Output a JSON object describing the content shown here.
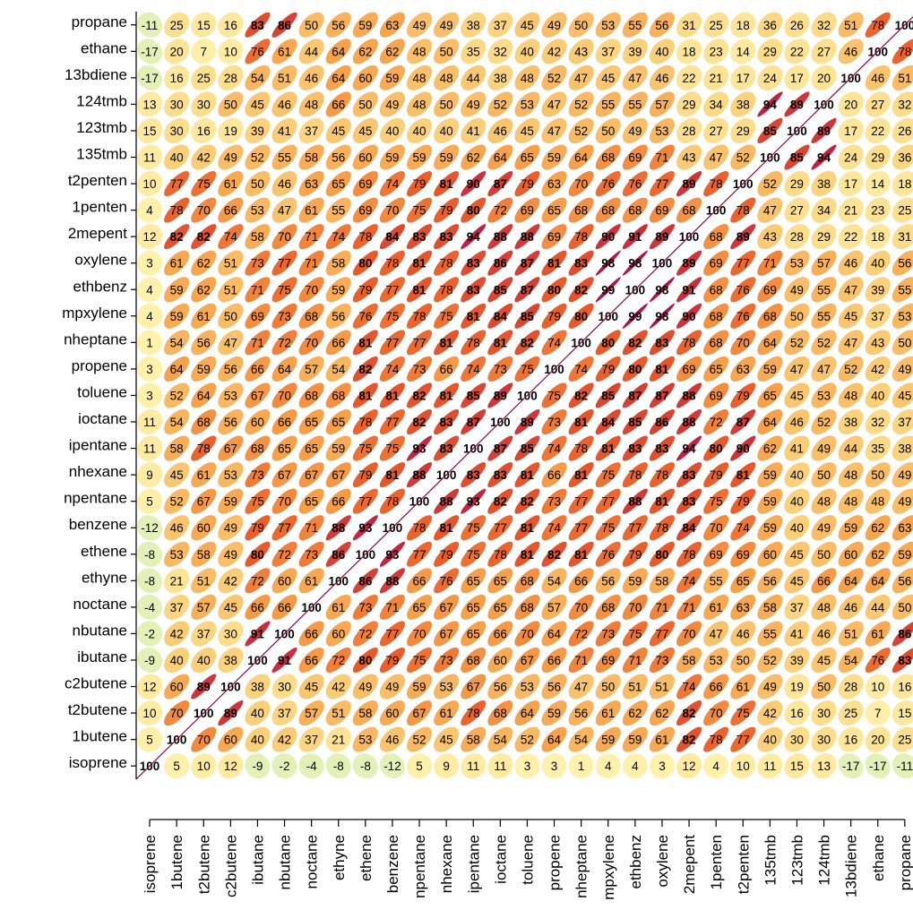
{
  "chart_data": {
    "type": "heatmap",
    "style": "correlation-ellipse",
    "title": "",
    "xlabel": "",
    "ylabel": "",
    "value_range": [
      -100,
      100
    ],
    "bold_threshold": 80,
    "colors": {
      "negative": "#e4f0b8",
      "low": "#fff3b0",
      "mid": "#f6a04a",
      "high": "#e85a2a",
      "very_high": "#b3124a",
      "diagonal": "#8b0a3a"
    },
    "variables": [
      "isoprene",
      "1butene",
      "t2butene",
      "c2butene",
      "ibutane",
      "nbutane",
      "noctane",
      "ethyne",
      "ethene",
      "benzene",
      "npentane",
      "nhexane",
      "ipentane",
      "ioctane",
      "toluene",
      "propene",
      "nheptane",
      "mpxylene",
      "ethbenz",
      "oxylene",
      "2mepent",
      "1penten",
      "t2penten",
      "135tmb",
      "123tmb",
      "124tmb",
      "13bdiene",
      "ethane",
      "propane"
    ],
    "matrix": [
      [
        100,
        5,
        10,
        12,
        -9,
        -2,
        -4,
        -8,
        -8,
        -12,
        5,
        9,
        11,
        11,
        3,
        3,
        1,
        4,
        4,
        3,
        12,
        4,
        10,
        11,
        15,
        13,
        -17,
        -17,
        -11
      ],
      [
        5,
        100,
        70,
        60,
        40,
        42,
        37,
        21,
        53,
        46,
        52,
        45,
        58,
        54,
        52,
        64,
        54,
        59,
        59,
        61,
        82,
        78,
        77,
        40,
        30,
        30,
        16,
        20,
        25
      ],
      [
        10,
        70,
        100,
        89,
        40,
        37,
        57,
        51,
        58,
        60,
        67,
        61,
        78,
        68,
        64,
        59,
        56,
        61,
        62,
        62,
        82,
        70,
        75,
        42,
        16,
        30,
        25,
        7,
        15
      ],
      [
        12,
        60,
        89,
        100,
        38,
        30,
        45,
        42,
        49,
        49,
        59,
        53,
        67,
        56,
        53,
        56,
        47,
        50,
        51,
        51,
        74,
        66,
        61,
        49,
        19,
        50,
        28,
        10,
        16
      ],
      [
        -9,
        40,
        40,
        38,
        100,
        91,
        66,
        72,
        80,
        79,
        75,
        73,
        68,
        60,
        67,
        66,
        71,
        69,
        71,
        73,
        58,
        53,
        50,
        52,
        39,
        45,
        54,
        76,
        83
      ],
      [
        -2,
        42,
        37,
        30,
        91,
        100,
        66,
        60,
        72,
        77,
        70,
        67,
        65,
        66,
        70,
        64,
        72,
        73,
        75,
        77,
        70,
        47,
        46,
        55,
        41,
        46,
        51,
        61,
        86
      ],
      [
        -4,
        37,
        57,
        45,
        66,
        66,
        100,
        61,
        73,
        71,
        65,
        67,
        65,
        65,
        68,
        57,
        70,
        68,
        70,
        71,
        71,
        61,
        63,
        58,
        37,
        48,
        46,
        44,
        50
      ],
      [
        -8,
        21,
        51,
        42,
        72,
        60,
        61,
        100,
        86,
        88,
        66,
        76,
        65,
        65,
        68,
        54,
        66,
        56,
        59,
        58,
        74,
        55,
        65,
        56,
        45,
        66,
        64,
        64,
        56
      ],
      [
        -8,
        53,
        58,
        49,
        80,
        72,
        73,
        86,
        100,
        93,
        77,
        79,
        75,
        78,
        81,
        82,
        81,
        76,
        79,
        80,
        78,
        69,
        69,
        60,
        45,
        50,
        60,
        62,
        59
      ],
      [
        -12,
        46,
        60,
        49,
        79,
        77,
        71,
        88,
        93,
        100,
        78,
        81,
        75,
        77,
        81,
        74,
        77,
        75,
        77,
        78,
        84,
        70,
        74,
        59,
        40,
        49,
        59,
        62,
        63
      ],
      [
        5,
        52,
        67,
        59,
        75,
        70,
        65,
        66,
        77,
        78,
        100,
        88,
        93,
        82,
        82,
        73,
        77,
        77,
        88,
        81,
        83,
        75,
        79,
        59,
        40,
        48,
        48,
        48,
        49
      ],
      [
        9,
        45,
        61,
        53,
        73,
        67,
        67,
        67,
        79,
        81,
        88,
        100,
        83,
        83,
        81,
        66,
        81,
        75,
        78,
        78,
        83,
        79,
        81,
        59,
        40,
        50,
        48,
        50,
        49
      ],
      [
        11,
        58,
        78,
        67,
        68,
        65,
        65,
        59,
        75,
        75,
        93,
        83,
        100,
        87,
        85,
        74,
        78,
        81,
        83,
        83,
        94,
        80,
        90,
        62,
        41,
        49,
        44,
        35,
        38
      ],
      [
        11,
        54,
        68,
        56,
        60,
        66,
        65,
        65,
        78,
        77,
        82,
        83,
        87,
        100,
        89,
        73,
        81,
        84,
        85,
        86,
        88,
        72,
        87,
        64,
        46,
        52,
        38,
        32,
        37
      ],
      [
        3,
        52,
        64,
        53,
        67,
        70,
        68,
        68,
        81,
        81,
        82,
        81,
        85,
        89,
        100,
        75,
        82,
        85,
        87,
        87,
        88,
        69,
        79,
        65,
        45,
        53,
        48,
        40,
        45
      ],
      [
        3,
        64,
        59,
        56,
        66,
        64,
        57,
        54,
        82,
        74,
        73,
        66,
        74,
        73,
        75,
        100,
        74,
        79,
        80,
        81,
        69,
        65,
        63,
        59,
        47,
        47,
        52,
        42,
        49
      ],
      [
        1,
        54,
        56,
        47,
        71,
        72,
        70,
        66,
        81,
        77,
        77,
        81,
        78,
        81,
        82,
        74,
        100,
        80,
        82,
        83,
        78,
        68,
        70,
        64,
        52,
        52,
        47,
        43,
        50
      ],
      [
        4,
        59,
        61,
        50,
        69,
        73,
        68,
        56,
        76,
        75,
        78,
        75,
        81,
        84,
        85,
        79,
        80,
        100,
        99,
        98,
        90,
        68,
        76,
        68,
        50,
        55,
        45,
        37,
        53
      ],
      [
        4,
        59,
        62,
        51,
        71,
        75,
        70,
        59,
        79,
        77,
        81,
        78,
        83,
        85,
        87,
        80,
        82,
        99,
        100,
        98,
        91,
        68,
        76,
        69,
        49,
        55,
        47,
        39,
        55
      ],
      [
        3,
        61,
        62,
        51,
        73,
        77,
        71,
        58,
        80,
        78,
        81,
        78,
        83,
        86,
        87,
        81,
        83,
        98,
        98,
        100,
        89,
        69,
        77,
        71,
        53,
        57,
        46,
        40,
        56
      ],
      [
        12,
        82,
        82,
        74,
        58,
        70,
        71,
        74,
        78,
        84,
        83,
        83,
        94,
        88,
        88,
        69,
        78,
        90,
        91,
        89,
        100,
        68,
        89,
        43,
        28,
        29,
        22,
        18,
        31
      ],
      [
        4,
        78,
        70,
        66,
        53,
        47,
        61,
        55,
        69,
        70,
        75,
        79,
        80,
        72,
        69,
        65,
        68,
        68,
        68,
        69,
        68,
        100,
        78,
        47,
        27,
        34,
        21,
        23,
        25
      ],
      [
        10,
        77,
        75,
        61,
        50,
        46,
        63,
        65,
        69,
        74,
        79,
        81,
        90,
        87,
        79,
        63,
        70,
        76,
        76,
        77,
        89,
        78,
        100,
        52,
        29,
        38,
        17,
        14,
        18
      ],
      [
        11,
        40,
        42,
        49,
        52,
        55,
        58,
        56,
        60,
        59,
        59,
        59,
        62,
        64,
        65,
        59,
        64,
        68,
        69,
        71,
        43,
        47,
        52,
        100,
        85,
        94,
        24,
        29,
        36
      ],
      [
        15,
        30,
        16,
        19,
        39,
        41,
        37,
        45,
        45,
        40,
        40,
        40,
        41,
        46,
        45,
        47,
        52,
        50,
        49,
        53,
        28,
        27,
        29,
        85,
        100,
        89,
        17,
        22,
        26
      ],
      [
        13,
        30,
        30,
        50,
        45,
        46,
        48,
        66,
        50,
        49,
        48,
        50,
        49,
        52,
        53,
        47,
        52,
        55,
        55,
        57,
        29,
        34,
        38,
        94,
        89,
        100,
        20,
        27,
        32
      ],
      [
        -17,
        16,
        25,
        28,
        54,
        51,
        46,
        64,
        60,
        59,
        48,
        48,
        44,
        38,
        48,
        52,
        47,
        45,
        47,
        46,
        22,
        21,
        17,
        24,
        17,
        20,
        100,
        46,
        51
      ],
      [
        -17,
        20,
        7,
        10,
        76,
        61,
        44,
        64,
        62,
        62,
        48,
        50,
        35,
        32,
        40,
        42,
        43,
        37,
        39,
        40,
        18,
        23,
        14,
        29,
        22,
        27,
        46,
        100,
        78
      ],
      [
        -11,
        25,
        15,
        16,
        83,
        86,
        50,
        56,
        59,
        63,
        49,
        49,
        38,
        37,
        45,
        49,
        50,
        53,
        55,
        56,
        31,
        25,
        18,
        36,
        26,
        32,
        51,
        78,
        100
      ]
    ]
  }
}
